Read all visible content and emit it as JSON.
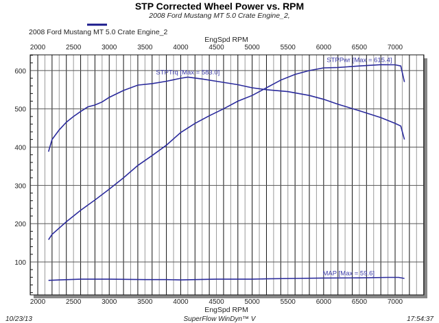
{
  "chart_data": {
    "type": "line",
    "title": "STP Corrected Wheel Power vs. RPM",
    "subtitle": "2008 Ford Mustang MT 5.0 Crate Engine_2,",
    "legend": {
      "entries": [
        "2008 Ford Mustang MT 5.0 Crate Engine_2"
      ],
      "placement": "top-left",
      "color": "#1a1a8c"
    },
    "xlabel": "EngSpd  RPM",
    "xlim": [
      1894,
      7403
    ],
    "ylim": [
      14,
      641
    ],
    "xticks": [
      2000,
      2500,
      3000,
      3500,
      4000,
      4500,
      5000,
      5500,
      6000,
      6500,
      7000
    ],
    "yticks": [
      100,
      200,
      300,
      400,
      500,
      600
    ],
    "grid": true,
    "series": [
      {
        "name": "STPTrq [Max = 583.0]",
        "color": "#2a2a9c",
        "x": [
          2150,
          2200,
          2300,
          2400,
          2500,
          2600,
          2700,
          2800,
          2900,
          3000,
          3200,
          3400,
          3600,
          3800,
          4000,
          4100,
          4300,
          4500,
          4800,
          5000,
          5200,
          5500,
          5800,
          6000,
          6200,
          6500,
          6800,
          7000,
          7080,
          7130
        ],
        "y": [
          388,
          420,
          445,
          465,
          480,
          493,
          505,
          510,
          518,
          530,
          548,
          562,
          566,
          572,
          580,
          583,
          578,
          572,
          563,
          555,
          550,
          545,
          535,
          525,
          512,
          495,
          477,
          462,
          455,
          420
        ]
      },
      {
        "name": "STPPwr [Max = 615.4]",
        "color": "#2a2a9c",
        "x": [
          2150,
          2200,
          2400,
          2600,
          2800,
          3000,
          3200,
          3400,
          3600,
          3800,
          4000,
          4200,
          4400,
          4600,
          4800,
          5000,
          5200,
          5400,
          5600,
          5800,
          6000,
          6200,
          6500,
          6800,
          7000,
          7080,
          7130
        ],
        "y": [
          158,
          172,
          205,
          235,
          262,
          290,
          320,
          352,
          378,
          405,
          438,
          462,
          482,
          500,
          520,
          535,
          555,
          575,
          590,
          600,
          607,
          608,
          612,
          615.4,
          615,
          612,
          570
        ]
      },
      {
        "name": "MAP  [Max = 59.6]",
        "color": "#2a2a9c",
        "x": [
          2150,
          2300,
          2600,
          3000,
          3500,
          3800,
          4000,
          4200,
          4500,
          5000,
          5200,
          5600,
          6000,
          6500,
          6900,
          7050,
          7130
        ],
        "y": [
          52,
          53,
          55,
          55,
          54,
          54,
          53,
          54,
          55,
          55,
          56,
          57,
          58,
          58.5,
          59.6,
          59.6,
          57
        ]
      }
    ]
  },
  "footer": {
    "date": "10/23/13",
    "software": "SuperFlow WinDyn™ V",
    "time": "17:54:37"
  }
}
